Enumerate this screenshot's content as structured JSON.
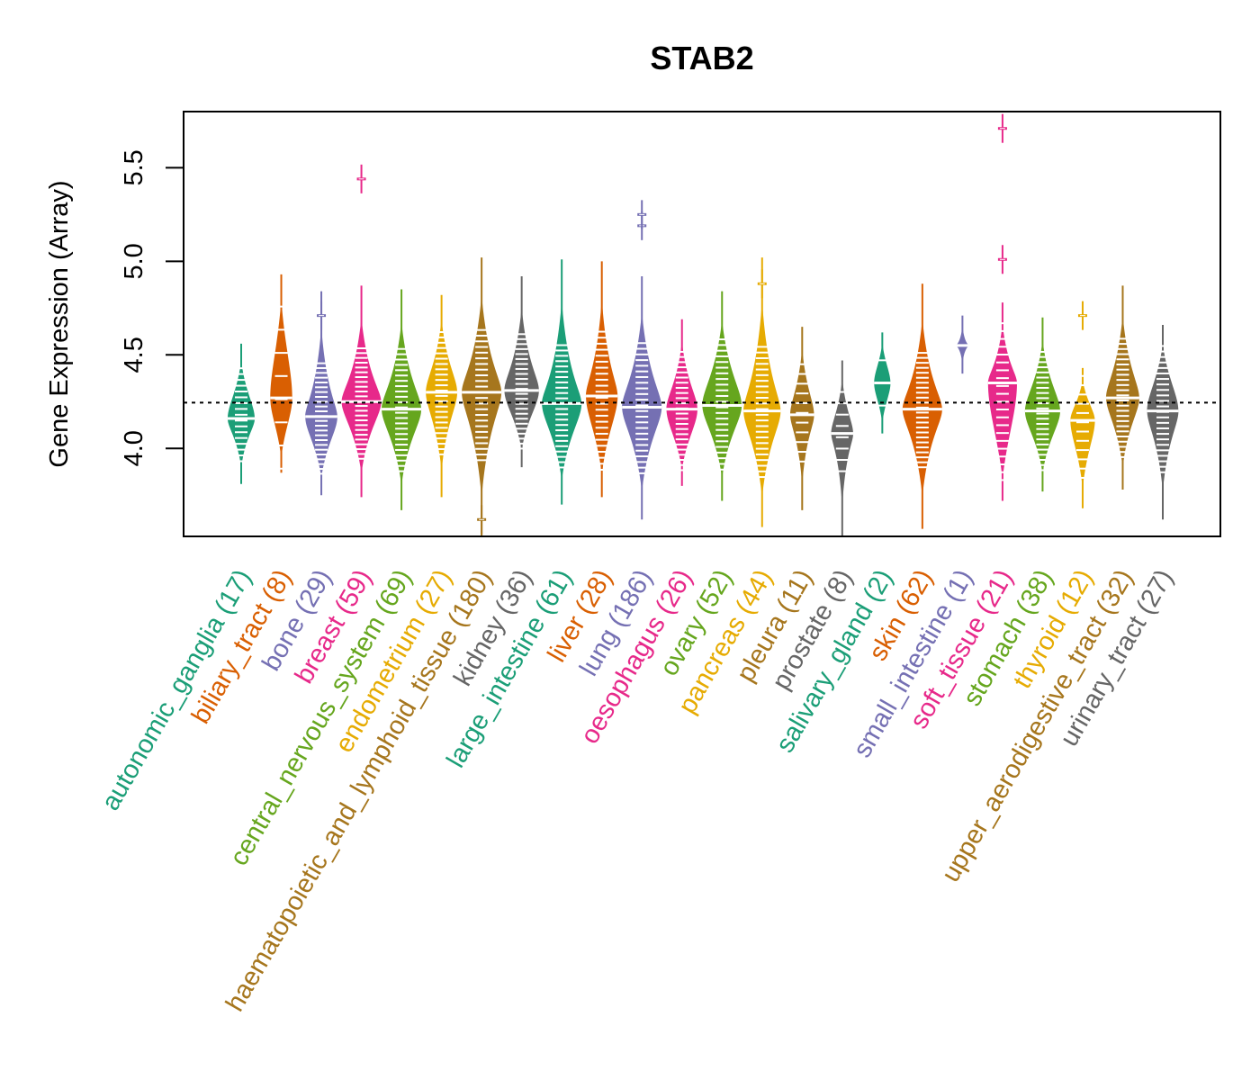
{
  "chart_data": {
    "type": "violin",
    "title": "STAB2",
    "xlabel": "",
    "ylabel": "Gene Expression (Array)",
    "ylim": [
      3.53,
      5.8
    ],
    "yticks": [
      4.0,
      4.5,
      5.0,
      5.5
    ],
    "ytick_labels": [
      "4.0",
      "4.5",
      "5.0",
      "5.5"
    ],
    "reference_line": {
      "value": 4.245,
      "style": "dotted"
    },
    "grid": false,
    "legend": "none",
    "palette": [
      "#1B9E77",
      "#D95F02",
      "#7570B3",
      "#E7298A",
      "#66A61E",
      "#E6AB02",
      "#A6761D",
      "#666666"
    ],
    "categories": [
      {
        "name": "autonomic_ganglia",
        "n": 17,
        "label": "autonomic_ganglia (17)",
        "median": 4.16,
        "q1": 4.06,
        "q3": 4.3,
        "min": 3.81,
        "max": 4.56,
        "outliers": []
      },
      {
        "name": "biliary_tract",
        "n": 8,
        "label": "biliary_tract (8)",
        "median": 4.27,
        "q1": 4.1,
        "q3": 4.55,
        "min": 3.87,
        "max": 4.93,
        "outliers": []
      },
      {
        "name": "bone",
        "n": 29,
        "label": "bone (29)",
        "median": 4.17,
        "q1": 4.02,
        "q3": 4.3,
        "min": 3.75,
        "max": 4.84,
        "outliers": [
          4.71
        ]
      },
      {
        "name": "breast",
        "n": 59,
        "label": "breast (59)",
        "median": 4.25,
        "q1": 4.1,
        "q3": 4.38,
        "min": 3.74,
        "max": 4.87,
        "outliers": [
          5.44
        ]
      },
      {
        "name": "central_nervous_system",
        "n": 69,
        "label": "central_nervous_system (69)",
        "median": 4.21,
        "q1": 4.05,
        "q3": 4.36,
        "min": 3.67,
        "max": 4.85,
        "outliers": []
      },
      {
        "name": "endometrium",
        "n": 27,
        "label": "endometrium (27)",
        "median": 4.3,
        "q1": 4.14,
        "q3": 4.45,
        "min": 3.74,
        "max": 4.82,
        "outliers": []
      },
      {
        "name": "haematopoietic_and_lymphoid_tissue",
        "n": 180,
        "label": "haematopoietic_and_lymphoid_tissue (180)",
        "median": 4.3,
        "q1": 4.12,
        "q3": 4.45,
        "min": 3.53,
        "max": 5.02,
        "outliers": [
          3.62
        ]
      },
      {
        "name": "kidney",
        "n": 36,
        "label": "kidney (36)",
        "median": 4.31,
        "q1": 4.16,
        "q3": 4.45,
        "min": 3.9,
        "max": 4.92,
        "outliers": []
      },
      {
        "name": "large_intestine",
        "n": 61,
        "label": "large_intestine (61)",
        "median": 4.24,
        "q1": 4.07,
        "q3": 4.38,
        "min": 3.7,
        "max": 5.01,
        "outliers": []
      },
      {
        "name": "liver",
        "n": 28,
        "label": "liver (28)",
        "median": 4.28,
        "q1": 4.08,
        "q3": 4.43,
        "min": 3.74,
        "max": 5.0,
        "outliers": []
      },
      {
        "name": "lung",
        "n": 186,
        "label": "lung (186)",
        "median": 4.22,
        "q1": 4.05,
        "q3": 4.38,
        "min": 3.62,
        "max": 4.92,
        "outliers": [
          5.19,
          5.25
        ]
      },
      {
        "name": "oesophagus",
        "n": 26,
        "label": "oesophagus (26)",
        "median": 4.21,
        "q1": 4.05,
        "q3": 4.35,
        "min": 3.8,
        "max": 4.69,
        "outliers": []
      },
      {
        "name": "ovary",
        "n": 52,
        "label": "ovary (52)",
        "median": 4.23,
        "q1": 4.07,
        "q3": 4.4,
        "min": 3.72,
        "max": 4.84,
        "outliers": []
      },
      {
        "name": "pancreas",
        "n": 44,
        "label": "pancreas (44)",
        "median": 4.2,
        "q1": 4.03,
        "q3": 4.36,
        "min": 3.58,
        "max": 5.02,
        "outliers": [
          4.88
        ]
      },
      {
        "name": "pleura",
        "n": 11,
        "label": "pleura (11)",
        "median": 4.18,
        "q1": 4.06,
        "q3": 4.32,
        "min": 3.67,
        "max": 4.65,
        "outliers": []
      },
      {
        "name": "prostate",
        "n": 8,
        "label": "prostate (8)",
        "median": 4.08,
        "q1": 3.98,
        "q3": 4.2,
        "min": 3.53,
        "max": 4.47,
        "outliers": []
      },
      {
        "name": "salivary_gland",
        "n": 2,
        "label": "salivary_gland (2)",
        "median": 4.35,
        "q1": 4.24,
        "q3": 4.46,
        "min": 4.08,
        "max": 4.62,
        "outliers": []
      },
      {
        "name": "skin",
        "n": 62,
        "label": "skin (62)",
        "median": 4.21,
        "q1": 4.06,
        "q3": 4.35,
        "min": 3.57,
        "max": 4.88,
        "outliers": []
      },
      {
        "name": "small_intestine",
        "n": 1,
        "label": "small_intestine (1)",
        "median": 4.55,
        "q1": 4.55,
        "q3": 4.55,
        "min": 4.4,
        "max": 4.71,
        "outliers": []
      },
      {
        "name": "soft_tissue",
        "n": 21,
        "label": "soft_tissue (21)",
        "median": 4.35,
        "q1": 4.05,
        "q3": 4.45,
        "min": 3.72,
        "max": 4.78,
        "outliers": [
          5.01,
          5.71
        ]
      },
      {
        "name": "stomach",
        "n": 38,
        "label": "stomach (38)",
        "median": 4.2,
        "q1": 4.05,
        "q3": 4.35,
        "min": 3.77,
        "max": 4.7,
        "outliers": []
      },
      {
        "name": "thyroid",
        "n": 12,
        "label": "thyroid (12)",
        "median": 4.15,
        "q1": 3.98,
        "q3": 4.25,
        "min": 3.68,
        "max": 4.43,
        "outliers": [
          4.71
        ]
      },
      {
        "name": "upper_aerodigestive_tract",
        "n": 32,
        "label": "upper_aerodigestive_tract (32)",
        "median": 4.27,
        "q1": 4.12,
        "q3": 4.42,
        "min": 3.78,
        "max": 4.87,
        "outliers": []
      },
      {
        "name": "urinary_tract",
        "n": 27,
        "label": "urinary_tract (27)",
        "median": 4.2,
        "q1": 4.05,
        "q3": 4.37,
        "min": 3.62,
        "max": 4.66,
        "outliers": []
      }
    ]
  }
}
